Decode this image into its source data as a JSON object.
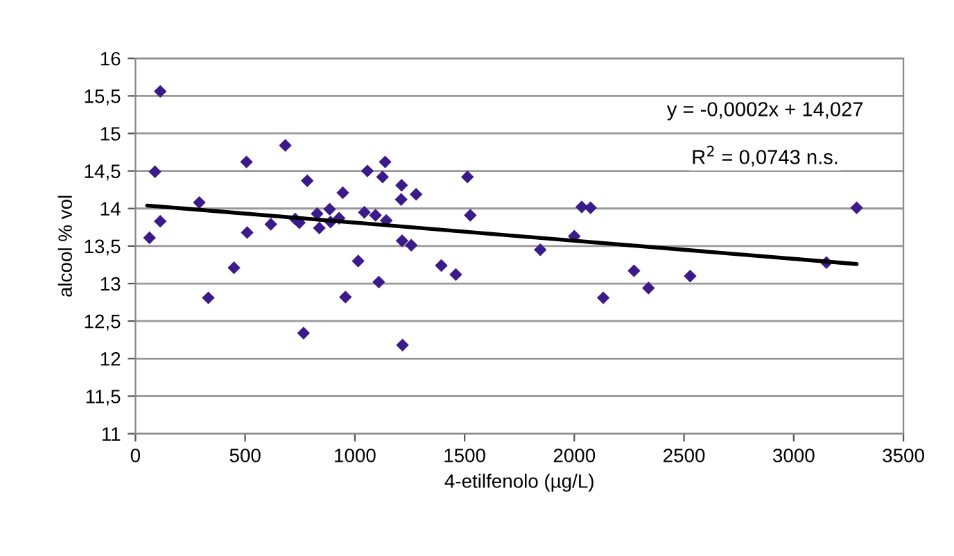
{
  "chart_data": {
    "type": "scatter",
    "xlabel": "4-etilfenolo (µg/L)",
    "ylabel": "alcool % vol",
    "xlim": [
      0,
      3500
    ],
    "xticks": [
      0,
      500,
      1000,
      1500,
      2000,
      2500,
      3000,
      3500
    ],
    "ylim": [
      11,
      16
    ],
    "yticks": [
      11,
      {
        "value": 11.5,
        "label": "11,5"
      },
      12,
      {
        "value": 12.5,
        "label": "12,5"
      },
      13,
      {
        "value": 13.5,
        "label": "13,5"
      },
      14,
      {
        "value": 14.5,
        "label": "14,5"
      },
      15,
      {
        "value": 15.5,
        "label": "15,5"
      },
      16
    ],
    "grid": "y",
    "legend": false,
    "marker": "diamond",
    "annotations": [
      "y = -0,0002x + 14,027",
      "R$^{2}$ = 0,0743 n.s."
    ],
    "series": [
      {
        "color": "#3b1a8a",
        "x": [
          64,
          89,
          113,
          113,
          291,
          332,
          449,
          506,
          509,
          617,
          683,
          728,
          747,
          766,
          783,
          828,
          838,
          885,
          889,
          928,
          945,
          957,
          1015,
          1043,
          1057,
          1094,
          1109,
          1126,
          1138,
          1143,
          1213,
          1211,
          1215,
          1217,
          1279,
          1257,
          1394,
          1460,
          1513,
          1526,
          1845,
          2000,
          2034,
          2074,
          2132,
          2272,
          2338,
          2528,
          3149,
          3287
        ],
        "values": [
          13.61,
          14.49,
          15.56,
          13.83,
          14.08,
          12.81,
          13.21,
          14.62,
          13.68,
          13.79,
          14.84,
          13.86,
          13.81,
          12.34,
          14.37,
          13.93,
          13.74,
          13.99,
          13.82,
          13.87,
          14.21,
          12.82,
          13.3,
          13.95,
          14.5,
          13.91,
          13.02,
          14.42,
          14.62,
          13.84,
          14.31,
          14.12,
          13.57,
          12.18,
          14.19,
          13.51,
          13.24,
          13.12,
          14.42,
          13.91,
          13.45,
          13.63,
          14.02,
          14.01,
          12.81,
          13.17,
          12.94,
          13.1,
          13.28,
          14.01
        ]
      },
      {
        "type": "line",
        "color": "#000000",
        "x": [
          53,
          3287
        ],
        "values": [
          14.04,
          13.26
        ],
        "marker": "none",
        "line_style": "solid"
      }
    ]
  }
}
